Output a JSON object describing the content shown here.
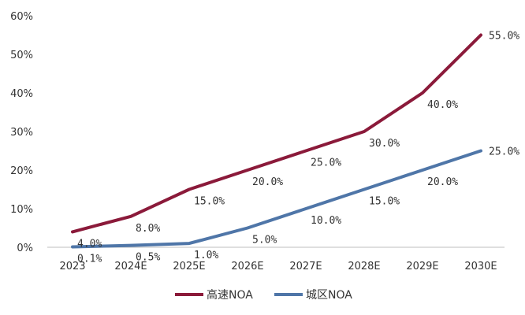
{
  "chart_data": {
    "type": "line",
    "title": "",
    "xlabel": "",
    "ylabel": "",
    "categories": [
      "2023",
      "2024E",
      "2025E",
      "2026E",
      "2027E",
      "2028E",
      "2029E",
      "2030E"
    ],
    "ylim": [
      0,
      60
    ],
    "yticks": [
      0,
      10,
      20,
      30,
      40,
      50,
      60
    ],
    "ytick_labels": [
      "0%",
      "10%",
      "20%",
      "30%",
      "40%",
      "50%",
      "60%"
    ],
    "grid": false,
    "legend_position": "bottom",
    "series": [
      {
        "name": "高速NOA",
        "color": "#8b1a3a",
        "values": [
          4,
          8,
          15,
          20,
          25,
          30,
          40,
          55
        ],
        "labels": [
          "4.0%",
          "8.0%",
          "15.0%",
          "20.0%",
          "25.0%",
          "30.0%",
          "40.0%",
          "55.0%"
        ]
      },
      {
        "name": "城区NOA",
        "color": "#4f76a8",
        "values": [
          0.1,
          0.5,
          1,
          5,
          10,
          15,
          20,
          25
        ],
        "labels": [
          "0.1%",
          "0.5%",
          "1.0%",
          "5.0%",
          "10.0%",
          "15.0%",
          "20.0%",
          "25.0%"
        ]
      }
    ]
  }
}
